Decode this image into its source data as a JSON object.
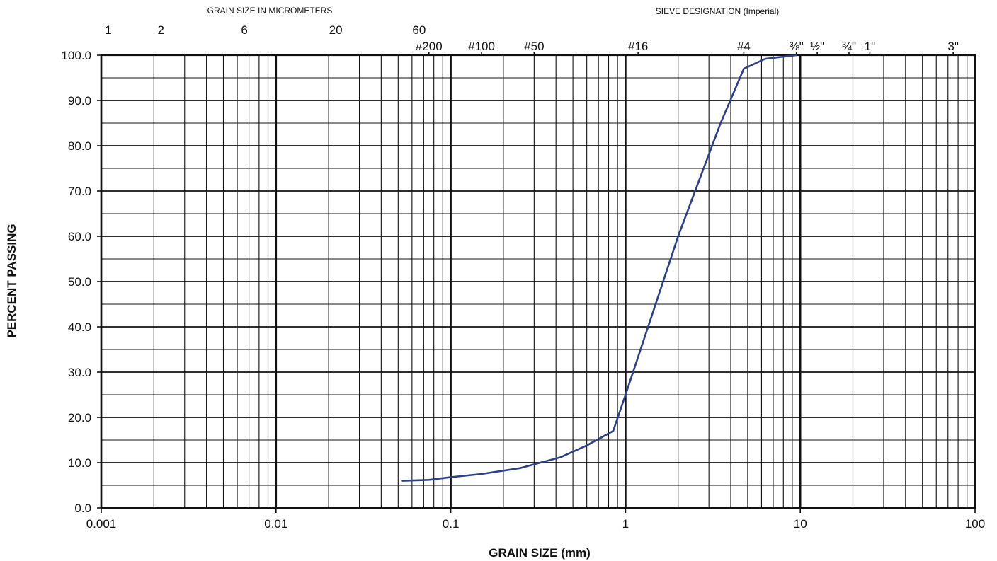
{
  "chart_data": {
    "type": "line",
    "x_scale": "log",
    "xlim": [
      0.001,
      100
    ],
    "ylim": [
      0,
      100
    ],
    "xlabel": "GRAIN SIZE (mm)",
    "ylabel": "PERCENT PASSING",
    "top_left_title": "GRAIN SIZE IN MICROMETERS",
    "top_right_title": "SIEVE DESIGNATION (Imperial)",
    "x_ticks": [
      {
        "value": 0.001,
        "label": "0.001"
      },
      {
        "value": 0.01,
        "label": "0.01"
      },
      {
        "value": 0.1,
        "label": "0.1"
      },
      {
        "value": 1,
        "label": "1"
      },
      {
        "value": 10,
        "label": "10"
      },
      {
        "value": 100,
        "label": "100"
      }
    ],
    "y_ticks": [
      {
        "value": 0,
        "label": "0.0"
      },
      {
        "value": 10,
        "label": "10.0"
      },
      {
        "value": 20,
        "label": "20.0"
      },
      {
        "value": 30,
        "label": "30.0"
      },
      {
        "value": 40,
        "label": "40.0"
      },
      {
        "value": 50,
        "label": "50.0"
      },
      {
        "value": 60,
        "label": "60.0"
      },
      {
        "value": 70,
        "label": "70.0"
      },
      {
        "value": 80,
        "label": "80.0"
      },
      {
        "value": 90,
        "label": "90.0"
      },
      {
        "value": 100,
        "label": "100.0"
      }
    ],
    "micrometer_labels": [
      {
        "value": 0.001,
        "label": "1"
      },
      {
        "value": 0.002,
        "label": "2"
      },
      {
        "value": 0.006,
        "label": "6"
      },
      {
        "value": 0.02,
        "label": "20"
      },
      {
        "value": 0.06,
        "label": "60"
      }
    ],
    "sieve_labels": [
      {
        "value": 0.075,
        "label": "#200"
      },
      {
        "value": 0.15,
        "label": "#100"
      },
      {
        "value": 0.3,
        "label": "#50"
      },
      {
        "value": 1.18,
        "label": "#16"
      },
      {
        "value": 4.75,
        "label": "#4"
      },
      {
        "value": 9.5,
        "label": "⅜\""
      },
      {
        "value": 12.5,
        "label": "½\""
      },
      {
        "value": 19,
        "label": "¾\""
      },
      {
        "value": 25,
        "label": "1\""
      },
      {
        "value": 75,
        "label": "3\""
      }
    ],
    "grid": true,
    "series": [
      {
        "color": "#2b3f8c",
        "points": [
          {
            "x": 0.053,
            "y": 6.0
          },
          {
            "x": 0.075,
            "y": 6.2
          },
          {
            "x": 0.1,
            "y": 6.8
          },
          {
            "x": 0.15,
            "y": 7.5
          },
          {
            "x": 0.25,
            "y": 8.8
          },
          {
            "x": 0.425,
            "y": 11.2
          },
          {
            "x": 0.6,
            "y": 13.8
          },
          {
            "x": 0.85,
            "y": 17.0
          },
          {
            "x": 1.0,
            "y": 25.0
          },
          {
            "x": 2.0,
            "y": 60.0
          },
          {
            "x": 3.5,
            "y": 85.0
          },
          {
            "x": 4.75,
            "y": 97.0
          },
          {
            "x": 6.3,
            "y": 99.2
          },
          {
            "x": 9.5,
            "y": 100.0
          }
        ]
      }
    ]
  }
}
